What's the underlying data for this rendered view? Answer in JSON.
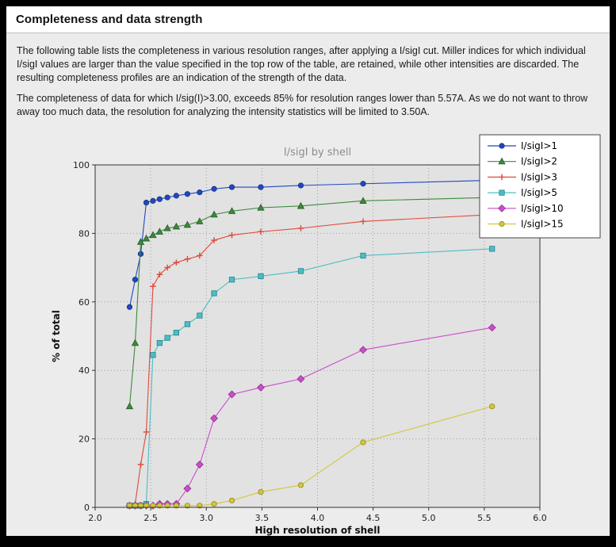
{
  "header": {
    "title": "Completeness and data strength"
  },
  "paragraphs": {
    "p1": "The following table lists the completeness in various resolution ranges, after applying a I/sigI cut. Miller indices for which individual I/sigI values are larger than the value specified in the top row of the table, are retained, while other intensities are discarded. The resulting completeness profiles are an indication of the strength of the data.",
    "p2": "The completeness of data for which I/sig(I)>3.00, exceeds  85% for resolution ranges lower than 5.57A. As we do not want to throw away too much data, the resolution for analyzing the intensity statistics will be limited to 3.50A."
  },
  "chart_data": {
    "type": "line",
    "title": "I/sigI by shell",
    "xlabel": "High resolution of shell",
    "ylabel": "% of total",
    "xlim": [
      2.0,
      6.0
    ],
    "ylim": [
      0,
      100
    ],
    "xticks": [
      "2.0",
      "2.5",
      "3.0",
      "3.5",
      "4.0",
      "4.5",
      "5.0",
      "5.5",
      "6.0"
    ],
    "yticks": [
      "0",
      "20",
      "40",
      "60",
      "80",
      "100"
    ],
    "grid": true,
    "legend_position": "top-right",
    "colors": {
      "figure_bg": "#ececec",
      "axes_bg": "#e2e2e2",
      "grid": "#9f9f9f",
      "spine": "#333333",
      "title": "#8c8c8c",
      "tick_label": "#222222",
      "legend_bg": "#ffffff",
      "legend_border": "#444444"
    },
    "x": [
      2.31,
      2.36,
      2.41,
      2.46,
      2.52,
      2.58,
      2.65,
      2.73,
      2.83,
      2.94,
      3.07,
      3.23,
      3.49,
      3.85,
      4.41,
      5.57
    ],
    "series": [
      {
        "name": "I/sigI>1",
        "color": "#2148c0",
        "edge": "#16307e",
        "marker": "circle",
        "values": [
          58.5,
          66.5,
          74,
          89,
          89.5,
          90,
          90.5,
          91,
          91.5,
          92,
          93,
          93.5,
          93.5,
          94,
          94.5,
          95.5
        ]
      },
      {
        "name": "I/sigI>2",
        "color": "#3c8a3c",
        "edge": "#255c25",
        "marker": "triangle",
        "values": [
          29.5,
          48,
          77.5,
          78.5,
          79.5,
          80.5,
          81.5,
          82,
          82.5,
          83.5,
          85.5,
          86.5,
          87.5,
          88,
          89.5,
          90.5
        ]
      },
      {
        "name": "I/sigI>3",
        "color": "#df4a3b",
        "edge": "#df4a3b",
        "marker": "plus",
        "values": [
          0.5,
          1,
          12.5,
          22,
          64.5,
          68,
          70,
          71.5,
          72.5,
          73.5,
          78,
          79.5,
          80.5,
          81.5,
          83.5,
          85.5
        ]
      },
      {
        "name": "I/sigI>5",
        "color": "#4cbdc4",
        "edge": "#23858c",
        "marker": "square",
        "values": [
          0.5,
          0.5,
          0.5,
          1,
          44.5,
          48,
          49.5,
          51,
          53.5,
          56,
          62.5,
          66.5,
          67.5,
          69,
          73.5,
          75.5
        ]
      },
      {
        "name": "I/sigI>10",
        "color": "#c94fc9",
        "edge": "#8f2e8f",
        "marker": "diamond",
        "values": [
          0.5,
          0.5,
          0.5,
          0.5,
          0.5,
          1,
          1,
          1,
          5.5,
          12.5,
          26,
          33,
          35,
          37.5,
          46,
          52.5
        ]
      },
      {
        "name": "I/sigI>15",
        "color": "#d3c63a",
        "edge": "#948a1e",
        "marker": "circle",
        "values": [
          0.5,
          0.5,
          0.5,
          0.5,
          0.5,
          0.5,
          0.5,
          0.5,
          0.5,
          0.5,
          1,
          2,
          4.5,
          6.5,
          19,
          29.5
        ]
      }
    ]
  }
}
